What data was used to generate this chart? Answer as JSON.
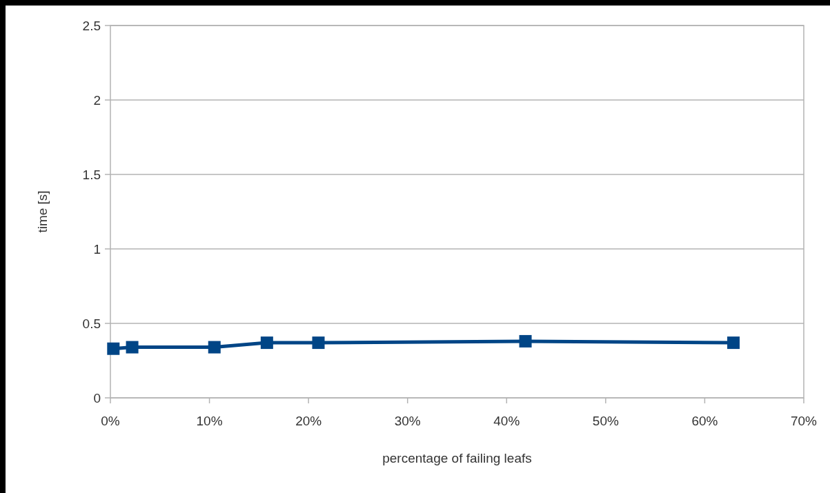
{
  "chart_data": {
    "type": "line",
    "xlabel": "percentage of failing leafs",
    "ylabel": "time [s]",
    "x": [
      0.3,
      2.2,
      10.5,
      15.8,
      21,
      41.9,
      62.9
    ],
    "series": [
      {
        "color": "#004586",
        "values": [
          0.33,
          0.34,
          0.34,
          0.37,
          0.37,
          0.38,
          0.37
        ]
      }
    ],
    "xlim": [
      0,
      70
    ],
    "xticks": [
      {
        "value": 0,
        "label": "0%"
      },
      {
        "value": 10,
        "label": "10%"
      },
      {
        "value": 20,
        "label": "20%"
      },
      {
        "value": 30,
        "label": "30%"
      },
      {
        "value": 40,
        "label": "40%"
      },
      {
        "value": 50,
        "label": "50%"
      },
      {
        "value": 60,
        "label": "60%"
      },
      {
        "value": 70,
        "label": "70%"
      }
    ],
    "ylim": [
      0,
      2.5
    ],
    "yticks": [
      0,
      0.5,
      1,
      1.5,
      2,
      2.5
    ],
    "grid": "y",
    "marker": "square",
    "line_style": "solid"
  }
}
